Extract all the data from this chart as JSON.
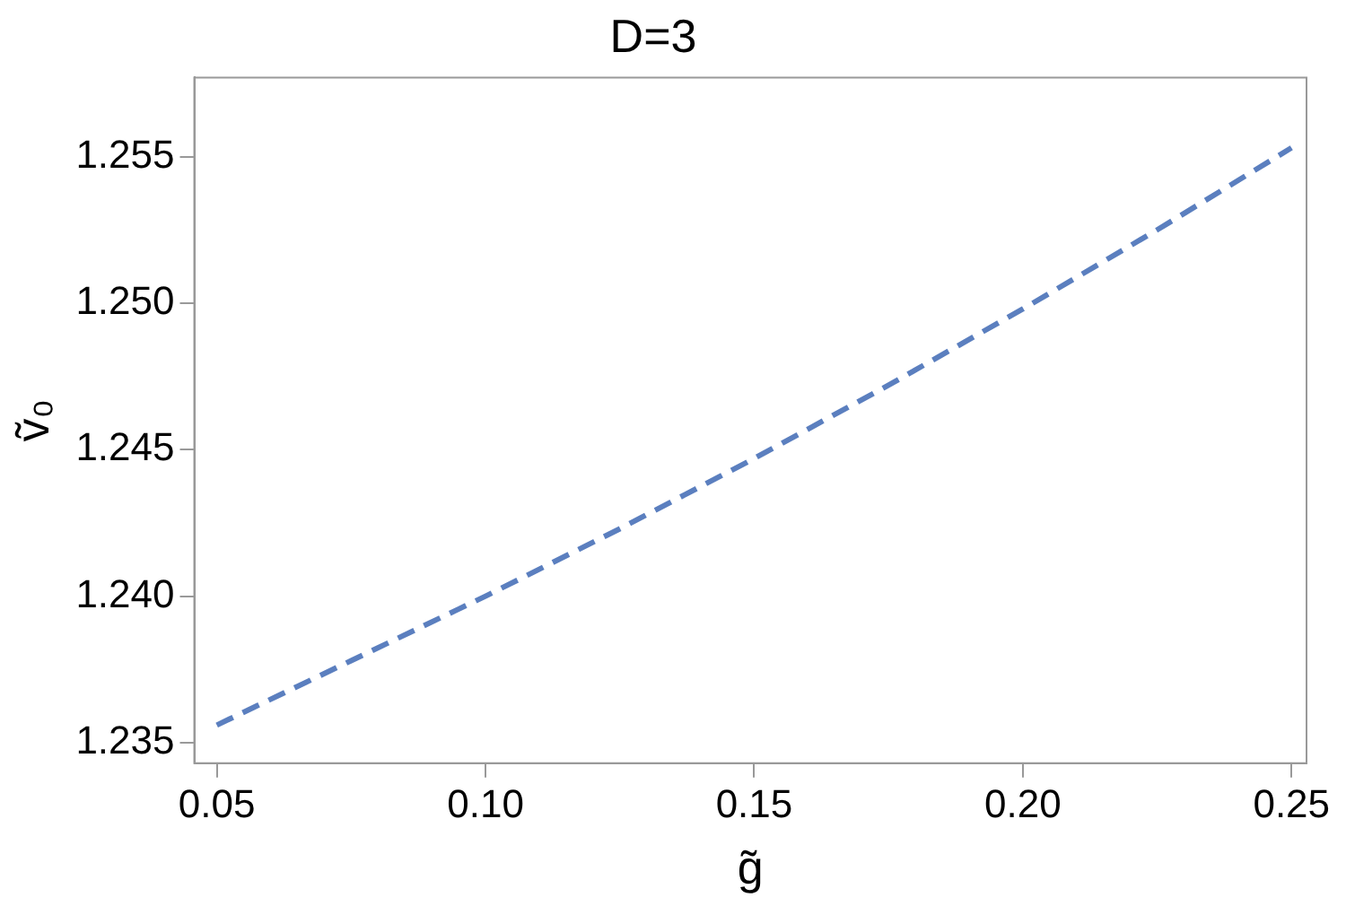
{
  "chart_data": {
    "type": "line",
    "title": "D=3",
    "xlabel": "g̃",
    "ylabel": "ṽ₀",
    "x": [
      0.05,
      0.075,
      0.1,
      0.125,
      0.15,
      0.175,
      0.2,
      0.225,
      0.25
    ],
    "series": [
      {
        "color": "#5b7fbf",
        "values": [
          1.2356,
          1.2378,
          1.24,
          1.2423,
          1.2447,
          1.2472,
          1.2498,
          1.2525,
          1.2553
        ]
      }
    ],
    "xlim": [
      0.0458,
      0.2528
    ],
    "ylim": [
      1.2343,
      1.2577
    ],
    "xticks": [
      {
        "value": 0.05,
        "label": "0.05"
      },
      {
        "value": 0.1,
        "label": "0.10"
      },
      {
        "value": 0.15,
        "label": "0.15"
      },
      {
        "value": 0.2,
        "label": "0.20"
      },
      {
        "value": 0.25,
        "label": "0.25"
      }
    ],
    "yticks": [
      {
        "value": 1.235,
        "label": "1.235"
      },
      {
        "value": 1.24,
        "label": "1.240"
      },
      {
        "value": 1.245,
        "label": "1.245"
      },
      {
        "value": 1.25,
        "label": "1.250"
      },
      {
        "value": 1.255,
        "label": "1.255"
      }
    ],
    "grid": false,
    "legend": false,
    "marker": "none",
    "line_style": "dashed"
  }
}
